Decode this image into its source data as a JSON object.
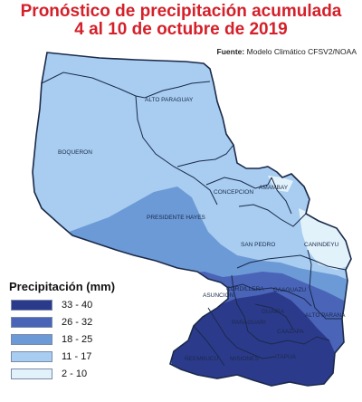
{
  "header": {
    "title_line_1": "Pronóstico de precipitación acumulada",
    "title_line_2": "4 al 10 de octubre de 2019",
    "source_label": "Fuente:",
    "source_text": "Modelo Climático CFSV2/NOAA"
  },
  "legend": {
    "title": "Precipitación (mm)",
    "items": [
      {
        "label": "33 - 40",
        "color": "#2c3a8c"
      },
      {
        "label": "26 - 32",
        "color": "#4a64b8"
      },
      {
        "label": "18 - 25",
        "color": "#6c9ad6"
      },
      {
        "label": "11 - 17",
        "color": "#a8cdf0"
      },
      {
        "label": "2 - 10",
        "color": "#e2f2fb"
      }
    ]
  },
  "map": {
    "departments": [
      {
        "name": "ALTO PARAGUAY"
      },
      {
        "name": "BOQUERON"
      },
      {
        "name": "PRESIDENTE HAYES"
      },
      {
        "name": "CONCEPCION"
      },
      {
        "name": "AMAMBAY"
      },
      {
        "name": "SAN PEDRO"
      },
      {
        "name": "CANINDEYU"
      },
      {
        "name": "CORDILLERA"
      },
      {
        "name": "CAAGUAZU"
      },
      {
        "name": "ALTO PARANA"
      },
      {
        "name": "GUAIRA"
      },
      {
        "name": "PARAGUARI"
      },
      {
        "name": "CAAZAPA"
      },
      {
        "name": "ÑEEMBUCU"
      },
      {
        "name": "MISIONES"
      },
      {
        "name": "ITAPUA"
      },
      {
        "name": "ASUNCION"
      }
    ]
  }
}
